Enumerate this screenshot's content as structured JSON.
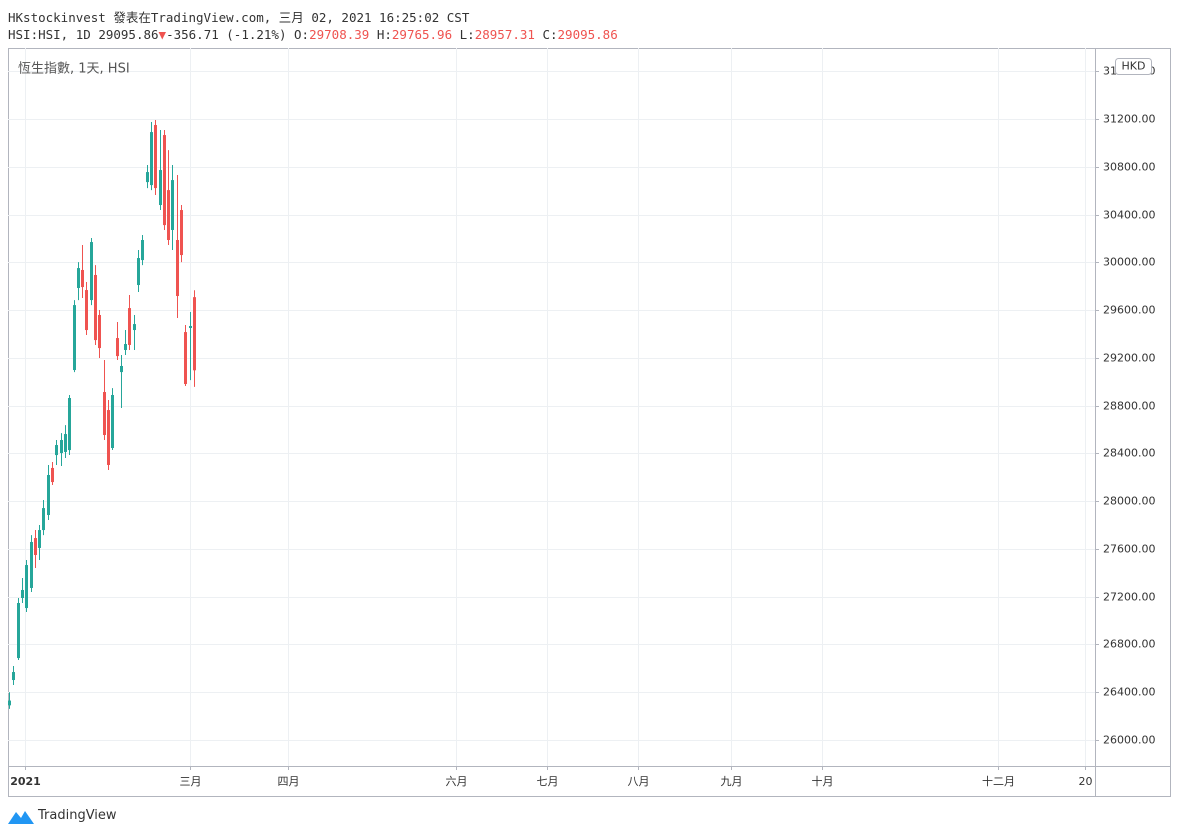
{
  "header": {
    "line1": "HKstockinvest 發表在TradingView.com, 三月 02, 2021 16:25:02 CST",
    "symbol": "HSI:HSI, 1D",
    "change": "-356.71 (-1.21%)",
    "ohlc_labels": [
      "O:",
      "H:",
      "L:",
      "C:"
    ]
  },
  "logo": "TradingView",
  "chart_data": {
    "type": "candlestick",
    "title": "恆生指數, 1天, HSI",
    "currency": "HKD",
    "x": [
      0,
      1,
      2,
      3,
      4,
      5,
      6,
      7,
      8,
      9,
      10,
      11,
      12,
      13,
      14,
      15,
      16,
      17,
      18,
      19,
      20,
      21,
      22,
      23,
      24,
      25,
      26,
      27,
      28,
      29,
      30,
      31,
      32,
      33,
      34,
      35,
      36,
      37,
      38,
      39,
      40,
      41,
      42,
      43
    ],
    "open": [
      26290,
      26502,
      26686,
      27189,
      27105,
      27273,
      27691,
      27608,
      27758,
      27884,
      28278,
      28386,
      28403,
      28412,
      28428,
      29098,
      29785,
      29936,
      29768,
      29684,
      29894,
      29559,
      28914,
      28763,
      28445,
      29366,
      29081,
      29266,
      29617,
      29433,
      29810,
      30019,
      30672,
      30647,
      31150,
      30480,
      31066,
      30605,
      30271,
      30187,
      30438,
      29416,
      29450,
      29708.39
    ],
    "high": [
      26400,
      26619,
      27189,
      27356,
      27507,
      27716,
      27758,
      27800,
      28010,
      28303,
      28328,
      28512,
      28570,
      28637,
      28889,
      29684,
      30002,
      30145,
      29835,
      30204,
      29977,
      29601,
      29182,
      28847,
      28947,
      29500,
      29224,
      29433,
      29726,
      29559,
      30103,
      30229,
      30815,
      31175,
      31192,
      31108,
      31108,
      30940,
      30815,
      30731,
      30480,
      29475,
      29584,
      29765.96
    ],
    "low": [
      26260,
      26460,
      26670,
      27147,
      27072,
      27239,
      27440,
      27507,
      27716,
      27842,
      28135,
      28303,
      28294,
      28361,
      28386,
      29081,
      29684,
      29701,
      29391,
      29642,
      29308,
      29199,
      28512,
      28261,
      28428,
      29182,
      28780,
      29224,
      29266,
      29266,
      29752,
      29977,
      30622,
      30605,
      30564,
      30438,
      30271,
      30145,
      30103,
      29534,
      30002,
      28964,
      29014,
      28957.31
    ],
    "close": [
      26330,
      26569,
      27147,
      27256,
      27465,
      27658,
      27549,
      27758,
      27942,
      28219,
      28160,
      28470,
      28512,
      28562,
      28864,
      29642,
      29952,
      29793,
      29433,
      30170,
      29349,
      29282,
      28554,
      28303,
      28889,
      29215,
      29132,
      29316,
      29308,
      29483,
      30036,
      30187,
      30756,
      31091,
      30622,
      30773,
      30312,
      30187,
      30689,
      29718,
      30061,
      28981,
      29467,
      29095.86
    ],
    "up_color": "#26a69a",
    "down_color": "#ef5350",
    "xlim": [
      -0.25,
      252.6
    ],
    "xticks": [
      {
        "value": 3.7,
        "label": "2021"
      },
      {
        "value": 42.1,
        "label": "三月"
      },
      {
        "value": 64.9,
        "label": "四月"
      },
      {
        "value": 103.9,
        "label": "六月"
      },
      {
        "value": 125.1,
        "label": "七月"
      },
      {
        "value": 146.3,
        "label": "八月"
      },
      {
        "value": 167.9,
        "label": "九月"
      },
      {
        "value": 189.1,
        "label": "十月"
      },
      {
        "value": 230.0,
        "label": "十二月"
      },
      {
        "value": 250.2,
        "label": "20"
      }
    ],
    "ylim": [
      25782,
      31795
    ],
    "yticks": [
      {
        "value": 26000,
        "label": "26000.00"
      },
      {
        "value": 26400,
        "label": "26400.00"
      },
      {
        "value": 26800,
        "label": "26800.00"
      },
      {
        "value": 27200,
        "label": "27200.00"
      },
      {
        "value": 27600,
        "label": "27600.00"
      },
      {
        "value": 28000,
        "label": "28000.00"
      },
      {
        "value": 28400,
        "label": "28400.00"
      },
      {
        "value": 28800,
        "label": "28800.00"
      },
      {
        "value": 29200,
        "label": "29200.00"
      },
      {
        "value": 29600,
        "label": "29600.00"
      },
      {
        "value": 30000,
        "label": "30000.00"
      },
      {
        "value": 30400,
        "label": "30400.00"
      },
      {
        "value": 30800,
        "label": "30800.00"
      },
      {
        "value": 31200,
        "label": "31200.00"
      },
      {
        "value": 31600,
        "label": "31600.00"
      }
    ],
    "grid": true
  }
}
